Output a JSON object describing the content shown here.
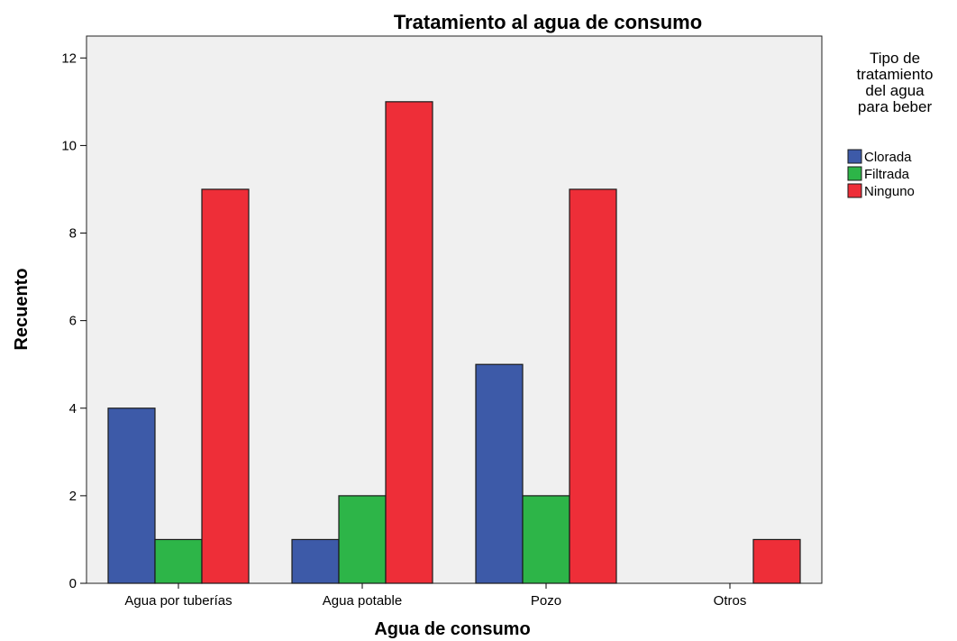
{
  "chart_data": {
    "type": "bar",
    "title": "Tratamiento al agua de consumo",
    "xlabel": "Agua de consumo",
    "ylabel": "Recuento",
    "ylim": [
      0,
      12.5
    ],
    "yticks": [
      "0",
      "2",
      "4",
      "6",
      "8",
      "10",
      "12"
    ],
    "categories": [
      "Agua por tuberías",
      "Agua potable",
      "Pozo",
      "Otros"
    ],
    "legend": {
      "title_lines": [
        "Tipo de",
        "tratamiento",
        "del agua",
        "para beber"
      ],
      "placement": "right"
    },
    "series": [
      {
        "name": "Clorada",
        "color": "#3d5aa8",
        "values": [
          4,
          1,
          5,
          0
        ]
      },
      {
        "name": "Filtrada",
        "color": "#2db548",
        "values": [
          1,
          2,
          2,
          0
        ]
      },
      {
        "name": "Ninguno",
        "color": "#ee2e38",
        "values": [
          9,
          11,
          9,
          1
        ]
      }
    ]
  }
}
